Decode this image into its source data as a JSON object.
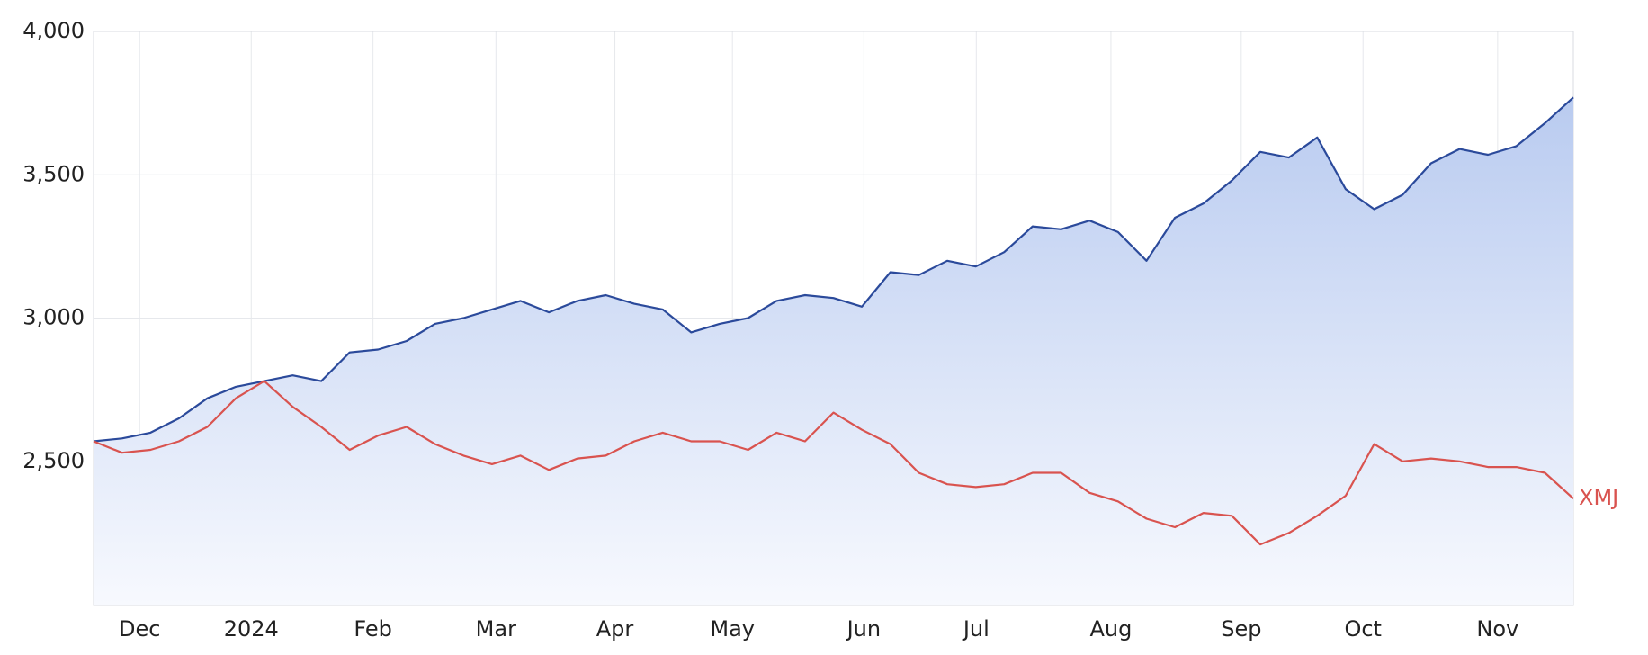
{
  "chart_data": {
    "type": "line",
    "series": [
      {
        "color": "#2b4a9b",
        "fill": true,
        "values": [
          2570,
          2580,
          2600,
          2650,
          2720,
          2760,
          2780,
          2800,
          2780,
          2880,
          2890,
          2920,
          2980,
          3000,
          3030,
          3060,
          3020,
          3060,
          3080,
          3050,
          3030,
          2950,
          2980,
          3000,
          3060,
          3080,
          3070,
          3040,
          3160,
          3150,
          3200,
          3180,
          3230,
          3320,
          3310,
          3340,
          3300,
          3200,
          3350,
          3400,
          3480,
          3580,
          3560,
          3630,
          3450,
          3380,
          3430,
          3540,
          3590,
          3570,
          3600,
          3680,
          3770
        ]
      },
      {
        "name": "XMJ",
        "color": "#d9534f",
        "fill": false,
        "values": [
          2570,
          2530,
          2540,
          2570,
          2620,
          2720,
          2780,
          2690,
          2620,
          2540,
          2590,
          2620,
          2560,
          2520,
          2490,
          2520,
          2470,
          2510,
          2520,
          2570,
          2600,
          2570,
          2570,
          2540,
          2600,
          2570,
          2670,
          2610,
          2560,
          2460,
          2420,
          2410,
          2420,
          2460,
          2460,
          2390,
          2360,
          2300,
          2270,
          2320,
          2310,
          2210,
          2250,
          2310,
          2380,
          2560,
          2500,
          2510,
          2500,
          2480,
          2480,
          2460,
          2370
        ]
      }
    ],
    "xlim": [
      0,
      52
    ],
    "xticks": [
      {
        "value": 1.62,
        "label": "Dec"
      },
      {
        "value": 5.54,
        "label": "2024"
      },
      {
        "value": 9.82,
        "label": "Feb"
      },
      {
        "value": 14.14,
        "label": "Mar"
      },
      {
        "value": 18.32,
        "label": "Apr"
      },
      {
        "value": 22.45,
        "label": "May"
      },
      {
        "value": 27.07,
        "label": "Jun"
      },
      {
        "value": 31.02,
        "label": "Jul"
      },
      {
        "value": 35.75,
        "label": "Aug"
      },
      {
        "value": 40.33,
        "label": "Sep"
      },
      {
        "value": 44.61,
        "label": "Oct"
      },
      {
        "value": 49.34,
        "label": "Nov"
      }
    ],
    "ylim": [
      2000,
      4000
    ],
    "yticks": [
      {
        "value": 2500,
        "label": "2,500"
      },
      {
        "value": 3000,
        "label": "3,000"
      },
      {
        "value": 3500,
        "label": "3,500"
      },
      {
        "value": 4000,
        "label": "4,000"
      }
    ],
    "grid": true
  }
}
